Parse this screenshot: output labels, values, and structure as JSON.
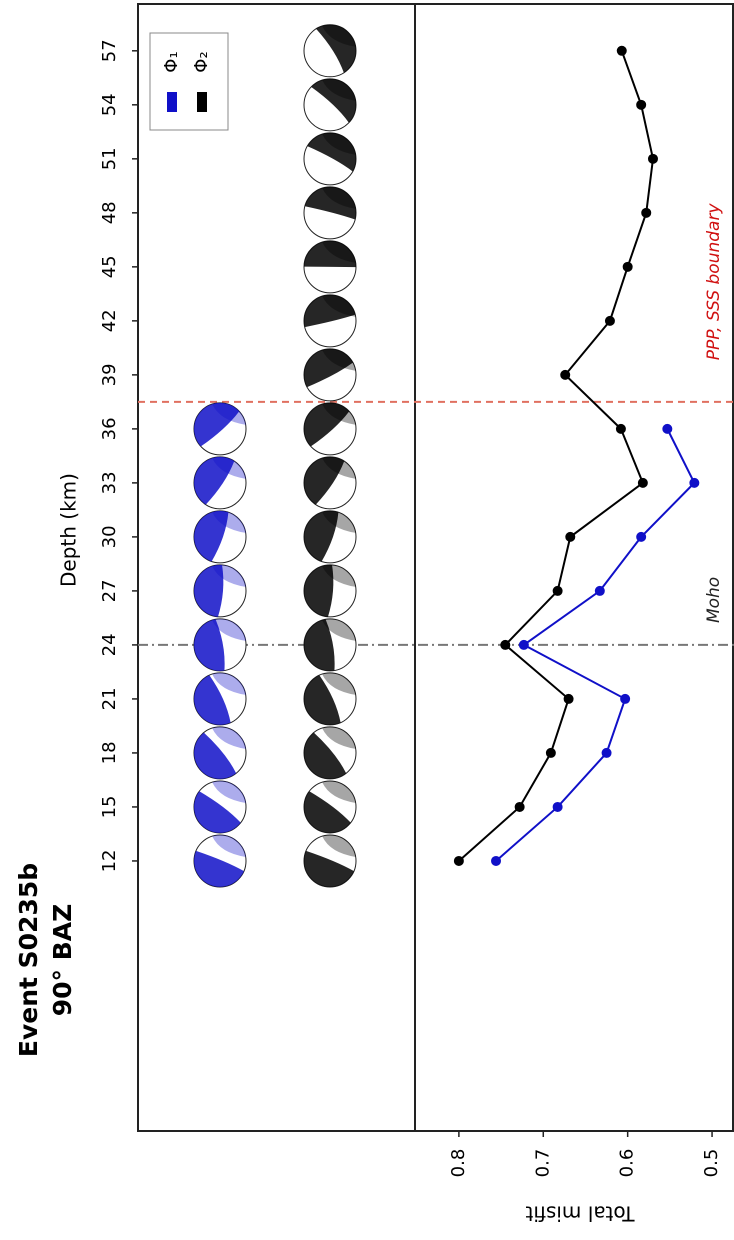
{
  "chart_data": {
    "type": "line",
    "title": "Event S0235b",
    "subtitle": "90° BAZ",
    "x_label": "Depth (km)",
    "y_label": "Total misfit",
    "x": [
      12,
      15,
      18,
      21,
      24,
      27,
      30,
      33,
      36,
      39,
      42,
      45,
      48,
      51,
      54,
      57
    ],
    "xlim": [
      -3,
      59.6
    ],
    "xticks": [
      12,
      15,
      18,
      21,
      24,
      27,
      30,
      33,
      36,
      39,
      42,
      45,
      48,
      51,
      54,
      57
    ],
    "ylim": [
      0.852,
      0.474
    ],
    "yticks": [
      0.8,
      0.7,
      0.6,
      0.5
    ],
    "legend": "upper left",
    "series": [
      {
        "name": "Φ₁",
        "color": "#1010c8",
        "values": [
          0.756,
          0.683,
          0.625,
          0.603,
          0.723,
          0.633,
          0.584,
          0.521,
          0.553,
          null,
          null,
          null,
          null,
          null,
          null,
          null
        ]
      },
      {
        "name": "Φ₂",
        "color": "#000000",
        "values": [
          0.8,
          0.728,
          0.691,
          0.67,
          0.745,
          0.683,
          0.668,
          0.582,
          0.608,
          0.674,
          0.621,
          0.6,
          0.578,
          0.57,
          0.584,
          0.607
        ]
      }
    ],
    "reference_lines": [
      {
        "value": 24,
        "label": "Moho",
        "color": "#777777",
        "style": "dashdot"
      },
      {
        "value": 37.5,
        "label": "PPP, SSS boundary",
        "color": "#e07060",
        "style": "dashed"
      }
    ]
  }
}
